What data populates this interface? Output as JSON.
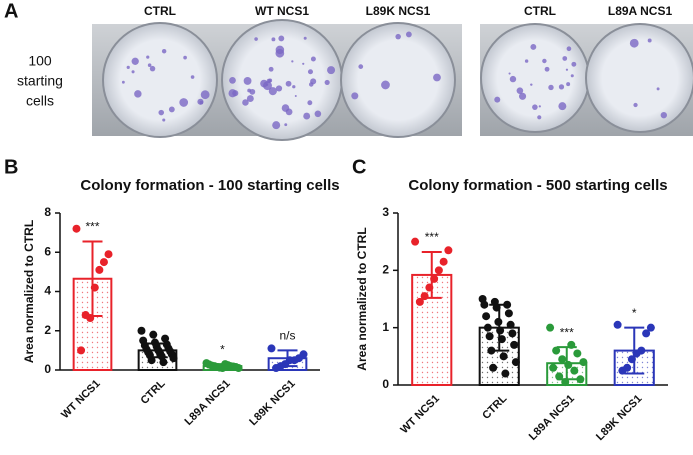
{
  "panel_a": {
    "label": "A",
    "row_label": [
      "100",
      "starting",
      "cells"
    ],
    "plate_labels": [
      "CTRL",
      "WT NCS1",
      "L89K NCS1",
      "CTRL",
      "L89A NCS1"
    ]
  },
  "chart_data": [
    {
      "type": "bar",
      "panel_label": "B",
      "title": "Colony formation - 100 starting cells",
      "ylabel": "Area normalized to  CTRL",
      "categories": [
        "WT NCS1",
        "CTRL",
        "L89A NCS1",
        "L89K NCS1"
      ],
      "values": [
        4.65,
        1.0,
        0.2,
        0.6
      ],
      "errors": [
        1.9,
        0.35,
        0.1,
        0.4
      ],
      "colors": [
        "#e8222a",
        "#111111",
        "#2a9a3a",
        "#2a36b8"
      ],
      "annotations": [
        "***",
        null,
        "*",
        "n/s"
      ],
      "points": [
        [
          7.2,
          5.9,
          5.5,
          5.1,
          4.2,
          2.65,
          2.8,
          1.0
        ],
        [
          2.0,
          1.8,
          1.6,
          1.5,
          1.4,
          1.3,
          1.25,
          1.2,
          1.1,
          1.05,
          1.0,
          0.95,
          0.9,
          0.85,
          0.8,
          0.75,
          0.7,
          0.6,
          0.5,
          0.4
        ],
        [
          0.35,
          0.3,
          0.28,
          0.25,
          0.22,
          0.2,
          0.2,
          0.18,
          0.15,
          0.15,
          0.12,
          0.1,
          0.1
        ],
        [
          1.1,
          0.8,
          0.6,
          0.5,
          0.5,
          0.3,
          0.2,
          0.1
        ]
      ],
      "ylim": [
        0,
        8
      ],
      "yticks": [
        0,
        2,
        4,
        6,
        8
      ]
    },
    {
      "type": "bar",
      "panel_label": "C",
      "title": "Colony formation - 500 starting cells",
      "ylabel": "Area normalized to  CTRL",
      "categories": [
        "WT NCS1",
        "CTRL",
        "L89A NCS1",
        "L89K NCS1"
      ],
      "values": [
        1.92,
        1.0,
        0.38,
        0.6
      ],
      "errors": [
        0.4,
        0.4,
        0.28,
        0.4
      ],
      "colors": [
        "#e8222a",
        "#111111",
        "#2a9a3a",
        "#2a36b8"
      ],
      "annotations": [
        "***",
        null,
        "***",
        "*"
      ],
      "points": [
        [
          2.5,
          2.35,
          2.15,
          2.0,
          1.85,
          1.7,
          1.55,
          1.45
        ],
        [
          1.5,
          1.45,
          1.4,
          1.4,
          1.35,
          1.25,
          1.2,
          1.1,
          1.05,
          1.0,
          0.95,
          0.9,
          0.85,
          0.8,
          0.7,
          0.6,
          0.5,
          0.4,
          0.3,
          0.2
        ],
        [
          1.0,
          0.7,
          0.6,
          0.55,
          0.45,
          0.4,
          0.35,
          0.3,
          0.25,
          0.15,
          0.1,
          0.05
        ],
        [
          1.05,
          1.0,
          0.9,
          0.6,
          0.55,
          0.45,
          0.3,
          0.25
        ]
      ],
      "ylim": [
        0,
        3
      ],
      "yticks": [
        0,
        1,
        2,
        3
      ]
    }
  ]
}
